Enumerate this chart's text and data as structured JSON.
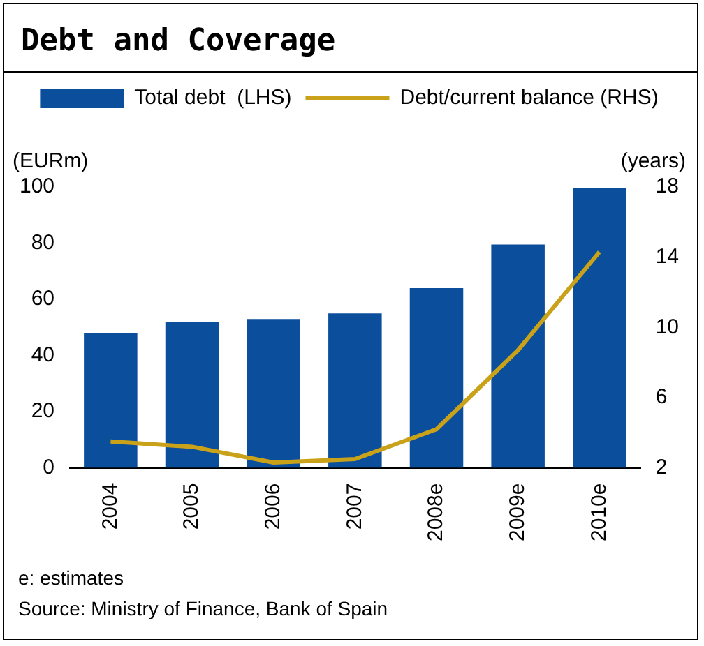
{
  "chart_data": {
    "type": "bar",
    "title": "Debt and Coverage",
    "ylabel": "(EURm)",
    "y2label": "(years)",
    "categories": [
      "2004",
      "2005",
      "2006",
      "2007",
      "2008e",
      "2009e",
      "2010e"
    ],
    "series": [
      {
        "name": "Total debt  (LHS)",
        "color": "#0b4f9c",
        "values": [
          48,
          52,
          53,
          55,
          64,
          79.5,
          99.5
        ]
      },
      {
        "name": "Debt/current balance (RHS)",
        "type": "line",
        "axis": "y2",
        "color": "#c9a21a",
        "values": [
          3.5,
          3.2,
          2.3,
          2.5,
          4.2,
          8.7,
          14.3
        ]
      }
    ],
    "ylim": [
      0,
      100
    ],
    "yticks": [
      0,
      20,
      40,
      60,
      80,
      100
    ],
    "y2lim": [
      2,
      18
    ],
    "y2ticks": [
      2,
      6,
      10,
      14,
      18
    ],
    "grid": false,
    "legend": "top",
    "marker": "none",
    "annotations": [
      "e: estimates",
      "Source: Ministry of Finance, Bank of Spain"
    ]
  }
}
